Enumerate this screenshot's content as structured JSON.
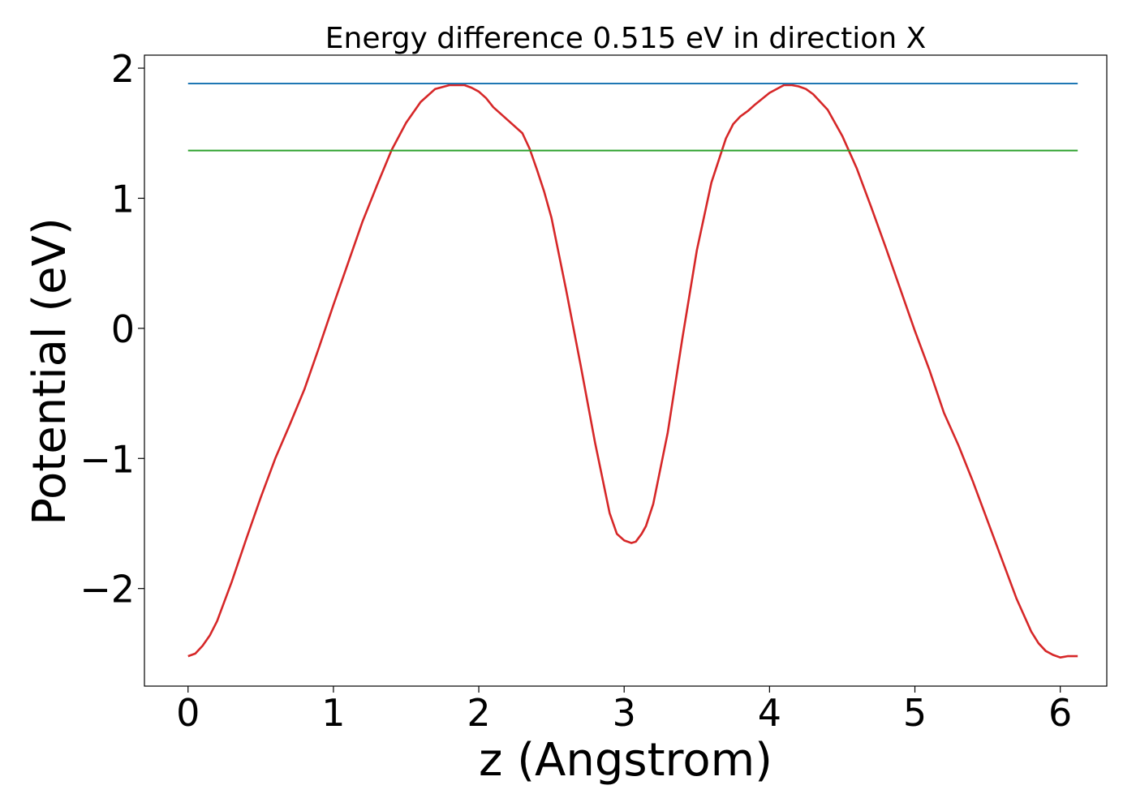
{
  "chart_data": {
    "type": "line",
    "title": "Energy difference 0.515 eV in direction X",
    "xlabel": "z (Angstrom)",
    "ylabel": "Potential (eV)",
    "xlim": [
      -0.3,
      6.32
    ],
    "ylim": [
      -2.75,
      2.1
    ],
    "xticks": [
      0,
      1,
      2,
      3,
      4,
      5,
      6
    ],
    "xtick_labels": [
      "0",
      "1",
      "2",
      "3",
      "4",
      "5",
      "6"
    ],
    "yticks": [
      -2,
      -1,
      0,
      1,
      2
    ],
    "ytick_labels": [
      "−2",
      "−1",
      "0",
      "1",
      "2"
    ],
    "grid": false,
    "legend": "none",
    "series": [
      {
        "color": "#d62728",
        "x": [
          0,
          0.05,
          0.1,
          0.15,
          0.2,
          0.25,
          0.3,
          0.4,
          0.5,
          0.6,
          0.7,
          0.8,
          0.9,
          1.0,
          1.1,
          1.2,
          1.3,
          1.4,
          1.5,
          1.6,
          1.7,
          1.8,
          1.9,
          1.95,
          2.0,
          2.05,
          2.1,
          2.2,
          2.3,
          2.35,
          2.4,
          2.45,
          2.5,
          2.6,
          2.7,
          2.8,
          2.9,
          2.95,
          3.0,
          3.05,
          3.08,
          3.12,
          3.15,
          3.2,
          3.3,
          3.4,
          3.5,
          3.6,
          3.7,
          3.75,
          3.8,
          3.85,
          3.9,
          4.0,
          4.1,
          4.15,
          4.2,
          4.25,
          4.3,
          4.4,
          4.5,
          4.6,
          4.7,
          4.8,
          4.9,
          5.0,
          5.1,
          5.2,
          5.3,
          5.4,
          5.5,
          5.6,
          5.7,
          5.8,
          5.85,
          5.9,
          5.95,
          6.0,
          6.05,
          6.12
        ],
        "y": [
          -2.52,
          -2.5,
          -2.44,
          -2.36,
          -2.25,
          -2.1,
          -1.95,
          -1.62,
          -1.3,
          -1.0,
          -0.74,
          -0.47,
          -0.15,
          0.18,
          0.5,
          0.82,
          1.1,
          1.37,
          1.58,
          1.74,
          1.84,
          1.87,
          1.87,
          1.85,
          1.82,
          1.77,
          1.7,
          1.6,
          1.5,
          1.38,
          1.22,
          1.05,
          0.85,
          0.3,
          -0.28,
          -0.88,
          -1.42,
          -1.58,
          -1.63,
          -1.65,
          -1.64,
          -1.58,
          -1.52,
          -1.35,
          -0.8,
          -0.08,
          0.6,
          1.12,
          1.46,
          1.57,
          1.63,
          1.67,
          1.72,
          1.81,
          1.87,
          1.87,
          1.86,
          1.84,
          1.8,
          1.68,
          1.48,
          1.23,
          0.93,
          0.62,
          0.3,
          -0.02,
          -0.32,
          -0.65,
          -0.9,
          -1.18,
          -1.48,
          -1.78,
          -2.08,
          -2.33,
          -2.42,
          -2.48,
          -2.51,
          -2.53,
          -2.52,
          -2.52
        ]
      },
      {
        "color": "#1f77b4",
        "x": [
          0,
          6.12
        ],
        "y": [
          1.882,
          1.882
        ]
      },
      {
        "color": "#2ca02c",
        "x": [
          0,
          6.12
        ],
        "y": [
          1.367,
          1.367
        ]
      }
    ]
  }
}
